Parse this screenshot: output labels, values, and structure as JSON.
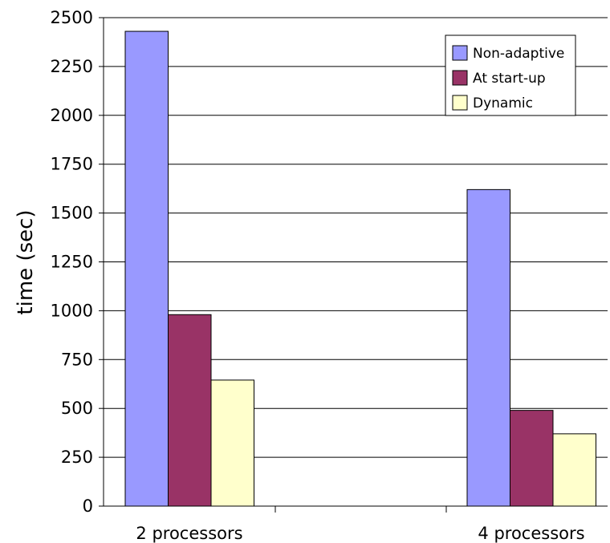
{
  "chart_data": {
    "type": "bar",
    "title": "",
    "xlabel": "",
    "ylabel": "time (sec)",
    "ylim": [
      0,
      2500
    ],
    "yticks": [
      0,
      250,
      500,
      750,
      1000,
      1250,
      1500,
      1750,
      2000,
      2250,
      2500
    ],
    "grid": true,
    "legend_position": "top-right",
    "categories": [
      "2 processors",
      "4 processors"
    ],
    "series": [
      {
        "name": "Non-adaptive",
        "color": "#9999ff",
        "values": [
          2430,
          1620
        ]
      },
      {
        "name": "At start-up",
        "color": "#993366",
        "values": [
          980,
          490
        ]
      },
      {
        "name": "Dynamic",
        "color": "#ffffcc",
        "values": [
          645,
          370
        ]
      }
    ]
  }
}
